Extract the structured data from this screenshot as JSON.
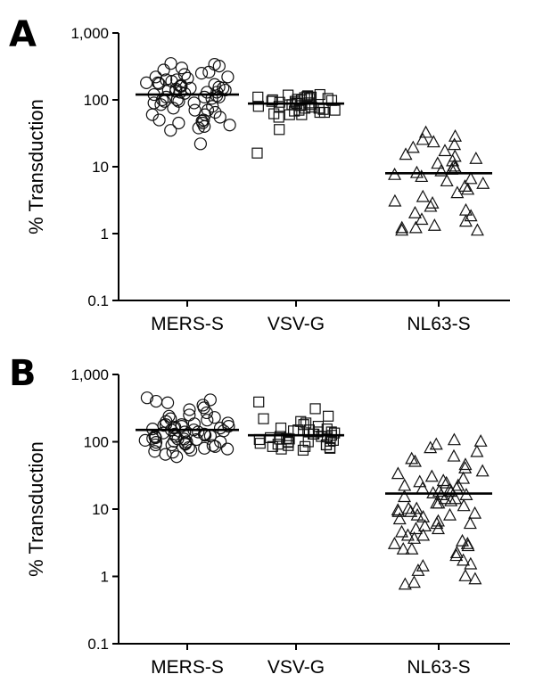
{
  "chart_data": [
    {
      "type": "scatter",
      "panel_label": "A",
      "ylabel": "% Transduction",
      "yscale": "log",
      "ylim": [
        0.1,
        1000
      ],
      "ytick_labels": [
        "0.1",
        "1",
        "10",
        "100",
        "1,000"
      ],
      "categories": [
        "MERS-S",
        "VSV-G",
        "NL63-S"
      ],
      "series": [
        {
          "category": "MERS-S",
          "marker": "circle",
          "mean": 120,
          "values": [
            22,
            35,
            38,
            42,
            45,
            48,
            50,
            55,
            60,
            65,
            70,
            75,
            80,
            85,
            90,
            95,
            100,
            105,
            110,
            115,
            120,
            125,
            130,
            135,
            140,
            145,
            150,
            155,
            160,
            165,
            170,
            175,
            180,
            190,
            200,
            210,
            220,
            240,
            260,
            280,
            300,
            320,
            340,
            350,
            150,
            130,
            110,
            90,
            70,
            60,
            50,
            45,
            40,
            110,
            100,
            95,
            130,
            140,
            160,
            180,
            200,
            220,
            250
          ]
        },
        {
          "category": "VSV-G",
          "marker": "square",
          "mean": 88,
          "values": [
            16,
            36,
            55,
            60,
            62,
            65,
            68,
            70,
            72,
            75,
            78,
            80,
            82,
            85,
            88,
            90,
            92,
            95,
            98,
            100,
            102,
            105,
            108,
            110,
            112,
            115,
            118,
            120,
            85,
            80,
            75,
            70,
            90,
            95,
            100,
            105,
            65,
            60,
            110
          ]
        },
        {
          "category": "NL63-S",
          "marker": "triangle",
          "mean": 8,
          "values": [
            1.1,
            1.1,
            1.2,
            1.2,
            1.3,
            1.5,
            1.6,
            1.8,
            2.0,
            2.2,
            2.5,
            2.8,
            3.0,
            3.5,
            4.0,
            4.5,
            5.0,
            5.5,
            6.0,
            6.5,
            7.0,
            7.5,
            8.0,
            8.5,
            9.0,
            9.5,
            10,
            11,
            12,
            13,
            14,
            15,
            17,
            19,
            21,
            23,
            25,
            28,
            32
          ]
        }
      ]
    },
    {
      "type": "scatter",
      "panel_label": "B",
      "ylabel": "% Transduction",
      "yscale": "log",
      "ylim": [
        0.1,
        1000
      ],
      "ytick_labels": [
        "0.1",
        "1",
        "10",
        "100",
        "1,000"
      ],
      "categories": [
        "MERS-S",
        "VSV-G",
        "NL63-S"
      ],
      "series": [
        {
          "category": "MERS-S",
          "marker": "circle",
          "mean": 150,
          "values": [
            60,
            65,
            70,
            72,
            75,
            78,
            80,
            82,
            85,
            88,
            90,
            92,
            95,
            98,
            100,
            102,
            105,
            108,
            110,
            112,
            115,
            118,
            120,
            122,
            125,
            128,
            130,
            135,
            140,
            145,
            150,
            155,
            160,
            165,
            170,
            175,
            180,
            185,
            190,
            200,
            210,
            220,
            230,
            240,
            250,
            270,
            300,
            320,
            350,
            380,
            400,
            420,
            450,
            90,
            100,
            110,
            120,
            130,
            140,
            150,
            160,
            170,
            180
          ]
        },
        {
          "category": "VSV-G",
          "marker": "square",
          "mean": 125,
          "values": [
            75,
            78,
            80,
            82,
            85,
            88,
            90,
            92,
            95,
            98,
            100,
            102,
            105,
            108,
            110,
            112,
            115,
            118,
            120,
            125,
            130,
            135,
            140,
            145,
            150,
            155,
            160,
            170,
            180,
            190,
            200,
            220,
            240,
            310,
            390,
            100,
            110,
            120,
            130,
            140,
            150,
            90,
            85
          ]
        },
        {
          "category": "NL63-S",
          "marker": "triangle",
          "mean": 17,
          "values": [
            0.75,
            0.8,
            0.9,
            1.0,
            1.2,
            1.4,
            1.5,
            1.7,
            2.0,
            2.2,
            2.5,
            2.8,
            3.0,
            3.3,
            3.6,
            4.0,
            4.5,
            5.0,
            5.5,
            6.0,
            6.5,
            7.0,
            7.5,
            8.0,
            8.5,
            9.0,
            9.5,
            10,
            11,
            12,
            13,
            14,
            15,
            16,
            17,
            18,
            19,
            20,
            22,
            24,
            26,
            28,
            30,
            33,
            36,
            40,
            45,
            50,
            55,
            60,
            70,
            80,
            90,
            100,
            105,
            12,
            14,
            16,
            18,
            20,
            22,
            25,
            8,
            9,
            10,
            6,
            5,
            4,
            3,
            2.5
          ]
        }
      ]
    }
  ]
}
